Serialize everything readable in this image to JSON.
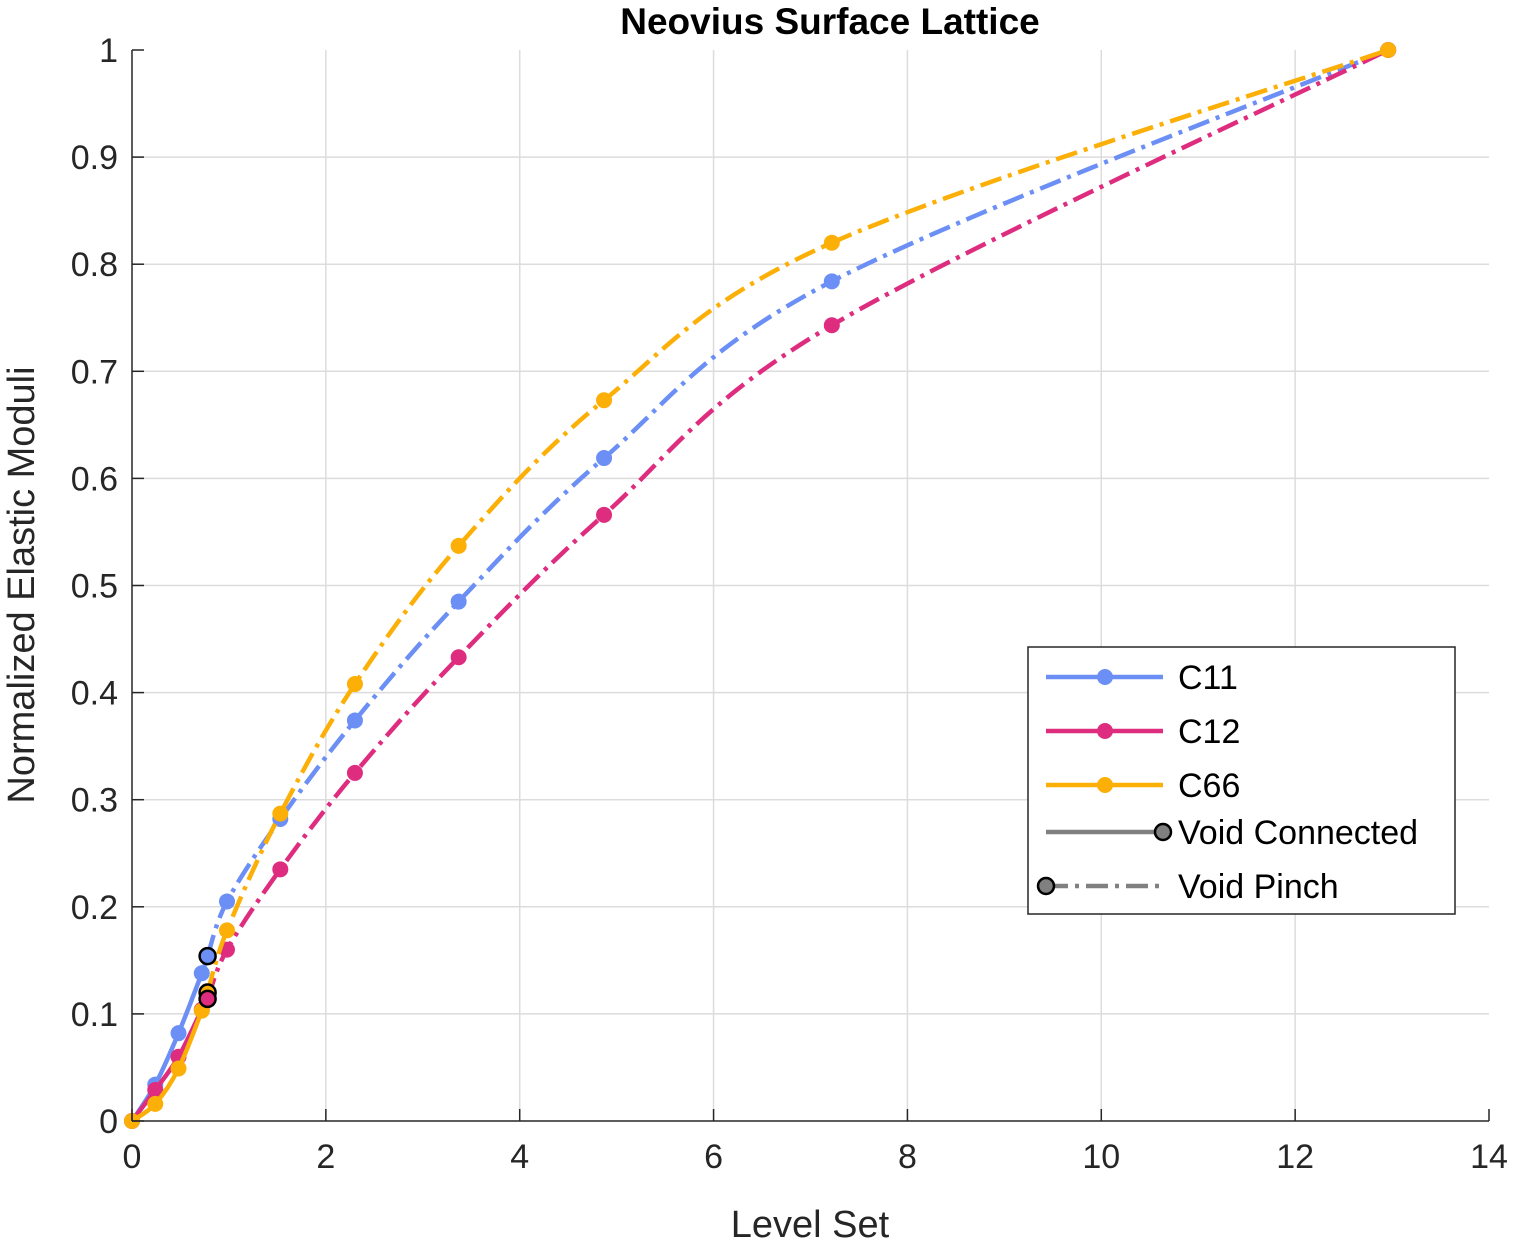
{
  "chart_data": {
    "type": "line",
    "title": "Neovius Surface Lattice",
    "xlabel": "Level Set",
    "ylabel": "Normalized Elastic Moduli",
    "xlim": [
      0,
      14
    ],
    "ylim": [
      0,
      1
    ],
    "xticks": [
      0,
      2,
      4,
      6,
      8,
      10,
      12,
      14
    ],
    "yticks": [
      0,
      0.1,
      0.2,
      0.3,
      0.4,
      0.5,
      0.6,
      0.7,
      0.8,
      0.9,
      1
    ],
    "xtick_labels": [
      "0",
      "2",
      "4",
      "6",
      "8",
      "10",
      "12",
      "14"
    ],
    "ytick_labels": [
      "0",
      "0.1",
      "0.2",
      "0.3",
      "0.4",
      "0.5",
      "0.6",
      "0.7",
      "0.8",
      "0.9",
      "1"
    ],
    "grid": true,
    "legend_position": "right",
    "series": [
      {
        "name": "C11",
        "color": "#6C8FF5",
        "connected": {
          "x": [
            0,
            0.24,
            0.48,
            0.72,
            0.78
          ],
          "y": [
            0,
            0.034,
            0.082,
            0.138,
            0.154
          ]
        },
        "pinch": {
          "x": [
            0.78,
            0.98,
            1.53,
            2.3,
            3.37,
            4.87,
            7.22,
            12.96
          ],
          "y": [
            0.154,
            0.205,
            0.282,
            0.374,
            0.485,
            0.619,
            0.784,
            1.0
          ]
        }
      },
      {
        "name": "C12",
        "color": "#DE2D7F",
        "connected": {
          "x": [
            0,
            0.24,
            0.48,
            0.72,
            0.78
          ],
          "y": [
            0,
            0.029,
            0.06,
            0.104,
            0.114
          ]
        },
        "pinch": {
          "x": [
            0.78,
            0.98,
            1.53,
            2.3,
            3.37,
            4.87,
            7.22,
            12.96
          ],
          "y": [
            0.114,
            0.16,
            0.235,
            0.325,
            0.433,
            0.566,
            0.743,
            1.0
          ]
        }
      },
      {
        "name": "C66",
        "color": "#FCAF07",
        "connected": {
          "x": [
            0,
            0.24,
            0.48,
            0.72,
            0.78
          ],
          "y": [
            0,
            0.016,
            0.049,
            0.103,
            0.12
          ]
        },
        "pinch": {
          "x": [
            0.78,
            0.98,
            1.53,
            2.3,
            3.37,
            4.87,
            7.22,
            12.96
          ],
          "y": [
            0.12,
            0.178,
            0.287,
            0.408,
            0.537,
            0.673,
            0.82,
            1.0
          ]
        }
      }
    ],
    "legend": [
      {
        "label": "C11",
        "color": "#6C8FF5",
        "style": "line-marker"
      },
      {
        "label": "C12",
        "color": "#DE2D7F",
        "style": "line-marker"
      },
      {
        "label": "C66",
        "color": "#FCAF07",
        "style": "line-marker"
      },
      {
        "label": "Void Connected",
        "color": "#808080",
        "style": "solid-end-circle"
      },
      {
        "label": "Void Pinch",
        "color": "#808080",
        "style": "dashdot-start-circle"
      }
    ]
  }
}
